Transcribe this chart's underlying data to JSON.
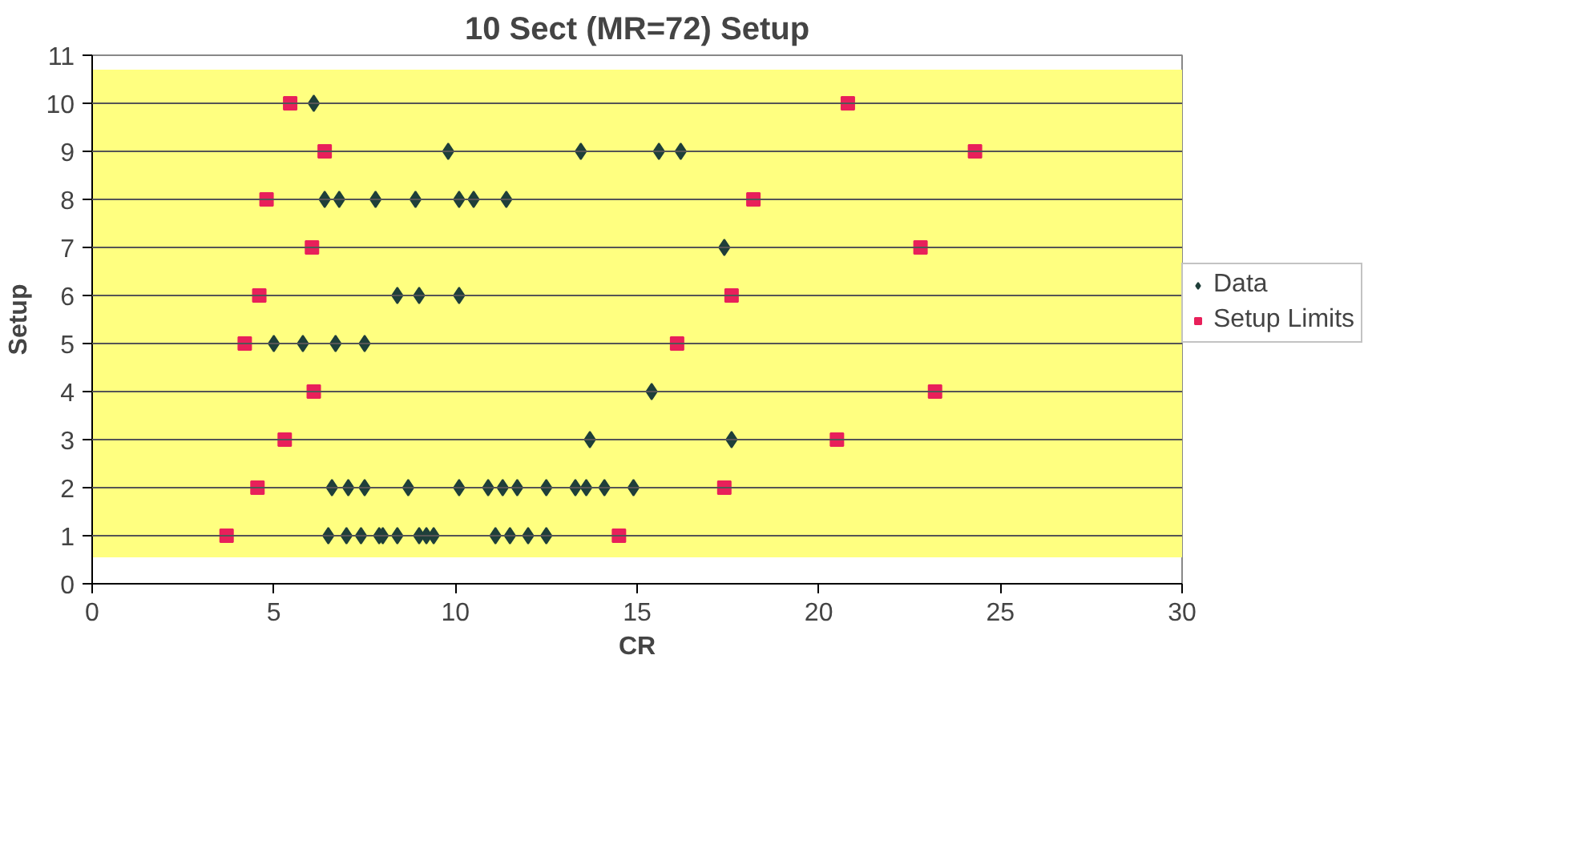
{
  "chart_data": {
    "type": "scatter",
    "title": "10 Sect (MR=72) Setup",
    "xlabel": "CR",
    "ylabel": "Setup",
    "xlim": [
      0,
      30
    ],
    "xticks": [
      0,
      5,
      10,
      15,
      20,
      25,
      30
    ],
    "ylim": [
      0,
      11
    ],
    "yticks": [
      0,
      1,
      2,
      3,
      4,
      5,
      6,
      7,
      8,
      9,
      10,
      11
    ],
    "grid": "y",
    "legend": "right",
    "bands": [
      {
        "axis": "y",
        "from": 0.55,
        "to": 10.7,
        "color": "#ffff80"
      }
    ],
    "series": [
      {
        "name": "Data",
        "color": "#1f3f3a",
        "marker": "diamond",
        "x": [
          6.1,
          9.8,
          13.45,
          15.6,
          16.2,
          6.4,
          6.8,
          7.8,
          8.9,
          10.1,
          10.5,
          11.4,
          17.4,
          8.4,
          9.0,
          10.1,
          5.0,
          5.8,
          6.7,
          7.5,
          15.4,
          13.7,
          17.6,
          6.6,
          7.05,
          7.5,
          8.7,
          10.1,
          10.9,
          11.3,
          11.7,
          12.5,
          13.3,
          13.6,
          14.1,
          14.9,
          6.5,
          7.0,
          7.4,
          7.9,
          8.0,
          8.4,
          9.0,
          9.2,
          9.4,
          11.1,
          11.5,
          12.0,
          12.5
        ],
        "values": [
          10,
          9,
          9,
          9,
          9,
          8,
          8,
          8,
          8,
          8,
          8,
          8,
          7,
          6,
          6,
          6,
          5,
          5,
          5,
          5,
          4,
          3,
          3,
          2,
          2,
          2,
          2,
          2,
          2,
          2,
          2,
          2,
          2,
          2,
          2,
          2,
          1,
          1,
          1,
          1,
          1,
          1,
          1,
          1,
          1,
          1,
          1,
          1,
          1
        ]
      },
      {
        "name": "Setup Limits",
        "color": "#e8205a",
        "marker": "square",
        "x": [
          5.45,
          20.8,
          6.4,
          24.3,
          4.8,
          18.2,
          6.05,
          22.8,
          4.6,
          17.6,
          4.2,
          16.1,
          6.1,
          23.2,
          5.3,
          20.5,
          4.55,
          17.4,
          3.7,
          14.5
        ],
        "values": [
          10,
          10,
          9,
          9,
          8,
          8,
          7,
          7,
          6,
          6,
          5,
          5,
          4,
          4,
          3,
          3,
          2,
          2,
          1,
          1
        ]
      }
    ]
  }
}
